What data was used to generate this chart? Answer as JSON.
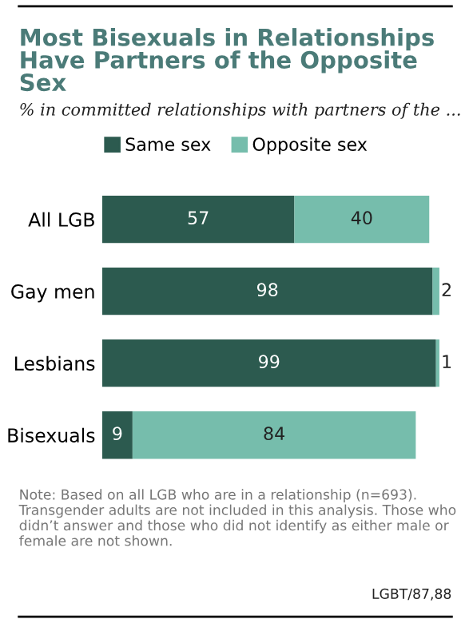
{
  "chart_data": {
    "type": "bar",
    "orientation": "horizontal",
    "stacked": true,
    "title": "Most Bisexuals in Relationships Have Partners of the Opposite Sex",
    "subtitle": "% in committed relationships with partners of the ...",
    "categories": [
      "All LGB",
      "Gay men",
      "Lesbians",
      "Bisexuals"
    ],
    "series": [
      {
        "name": "Same sex",
        "color": "#2c5a4f",
        "values": [
          57,
          98,
          99,
          9
        ]
      },
      {
        "name": "Opposite sex",
        "color": "#76bdac",
        "values": [
          40,
          2,
          1,
          84
        ]
      }
    ],
    "data_labels": true,
    "legend": "top",
    "grid": false,
    "annotations": [
      "Note: Based on all LGB who are in a relationship (n=693). Transgender adults are not included in this analysis. Those who didn’t answer and those who did not identify as either male or female are not shown.",
      "LGBT/87,88"
    ]
  }
}
